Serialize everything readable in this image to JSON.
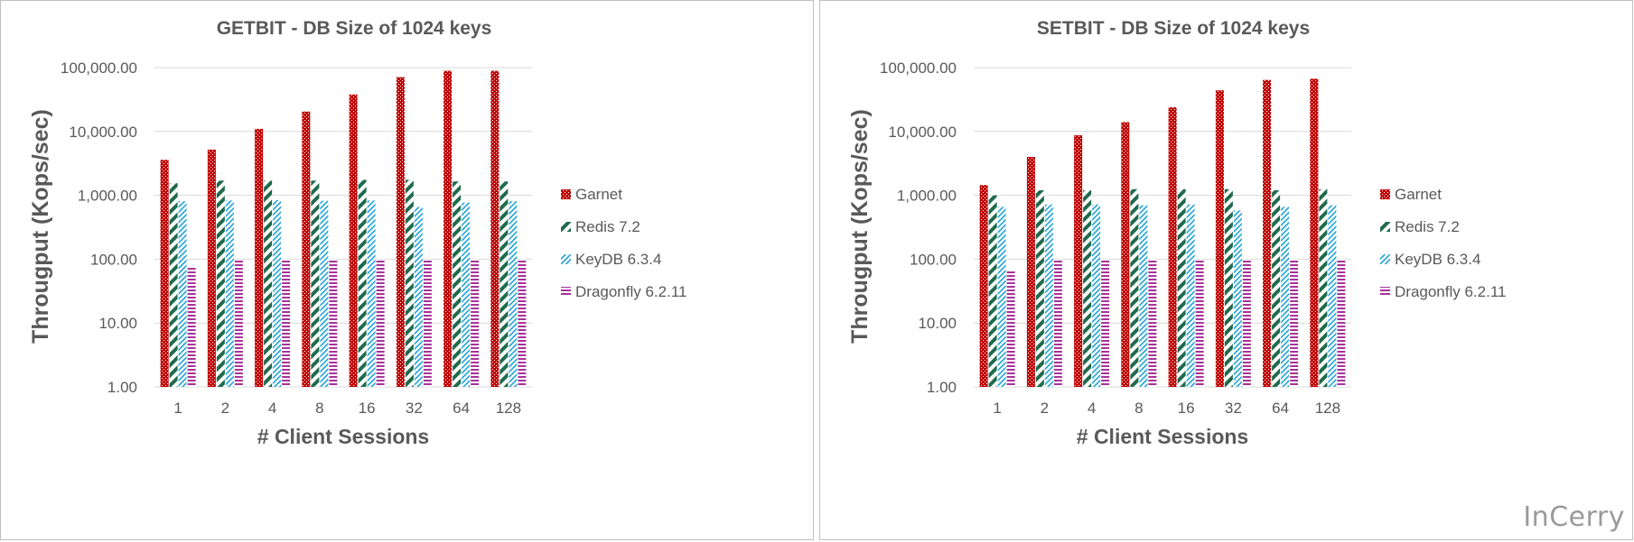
{
  "colors": {
    "garnet": "#c00000",
    "redis": "#1f6b4c",
    "keydb": "#1fa2d6",
    "dragonfly": "#a8329a",
    "grid": "#d9d9d9",
    "text": "#595959"
  },
  "watermark": "InCerry",
  "chart_data": [
    {
      "type": "bar",
      "title": "GETBIT - DB Size of 1024 keys",
      "xlabel": "# Client Sessions",
      "ylabel": "Througput (Kops/sec)",
      "yscale": "log",
      "ylim": [
        1,
        100000
      ],
      "yticks": [
        "1.00",
        "10.00",
        "100.00",
        "1,000.00",
        "10,000.00",
        "100,000.00"
      ],
      "legend_position": "right",
      "categories": [
        "1",
        "2",
        "4",
        "8",
        "16",
        "32",
        "64",
        "128"
      ],
      "series": [
        {
          "name": "Garnet",
          "key": "garnet",
          "values": [
            3600,
            5200,
            11000,
            20500,
            38000,
            71000,
            89000,
            89000
          ]
        },
        {
          "name": "Redis 7.2",
          "key": "redis",
          "values": [
            1550,
            1700,
            1700,
            1700,
            1750,
            1750,
            1650,
            1650
          ]
        },
        {
          "name": "KeyDB 6.3.4",
          "key": "keydb",
          "values": [
            810,
            830,
            840,
            820,
            830,
            660,
            770,
            810
          ]
        },
        {
          "name": "Dragonfly 6.2.11",
          "key": "dragonfly",
          "values": [
            75,
            95,
            99,
            99,
            99,
            99,
            99,
            99
          ]
        }
      ]
    },
    {
      "type": "bar",
      "title": "SETBIT - DB Size of 1024 keys",
      "xlabel": "# Client Sessions",
      "ylabel": "Througput (Kops/sec)",
      "yscale": "log",
      "ylim": [
        1,
        100000
      ],
      "yticks": [
        "1.00",
        "10.00",
        "100.00",
        "1,000.00",
        "10,000.00",
        "100,000.00"
      ],
      "legend_position": "right",
      "categories": [
        "1",
        "2",
        "4",
        "8",
        "16",
        "32",
        "64",
        "128"
      ],
      "series": [
        {
          "name": "Garnet",
          "key": "garnet",
          "values": [
            1450,
            4000,
            8700,
            14000,
            24000,
            44000,
            64000,
            67000
          ]
        },
        {
          "name": "Redis 7.2",
          "key": "redis",
          "values": [
            1000,
            1200,
            1200,
            1250,
            1250,
            1250,
            1200,
            1250
          ]
        },
        {
          "name": "KeyDB 6.3.4",
          "key": "keydb",
          "values": [
            660,
            720,
            720,
            700,
            720,
            580,
            660,
            700
          ]
        },
        {
          "name": "Dragonfly 6.2.11",
          "key": "dragonfly",
          "values": [
            68,
            95,
            99,
            100,
            99,
            99,
            99,
            99
          ]
        }
      ]
    }
  ]
}
